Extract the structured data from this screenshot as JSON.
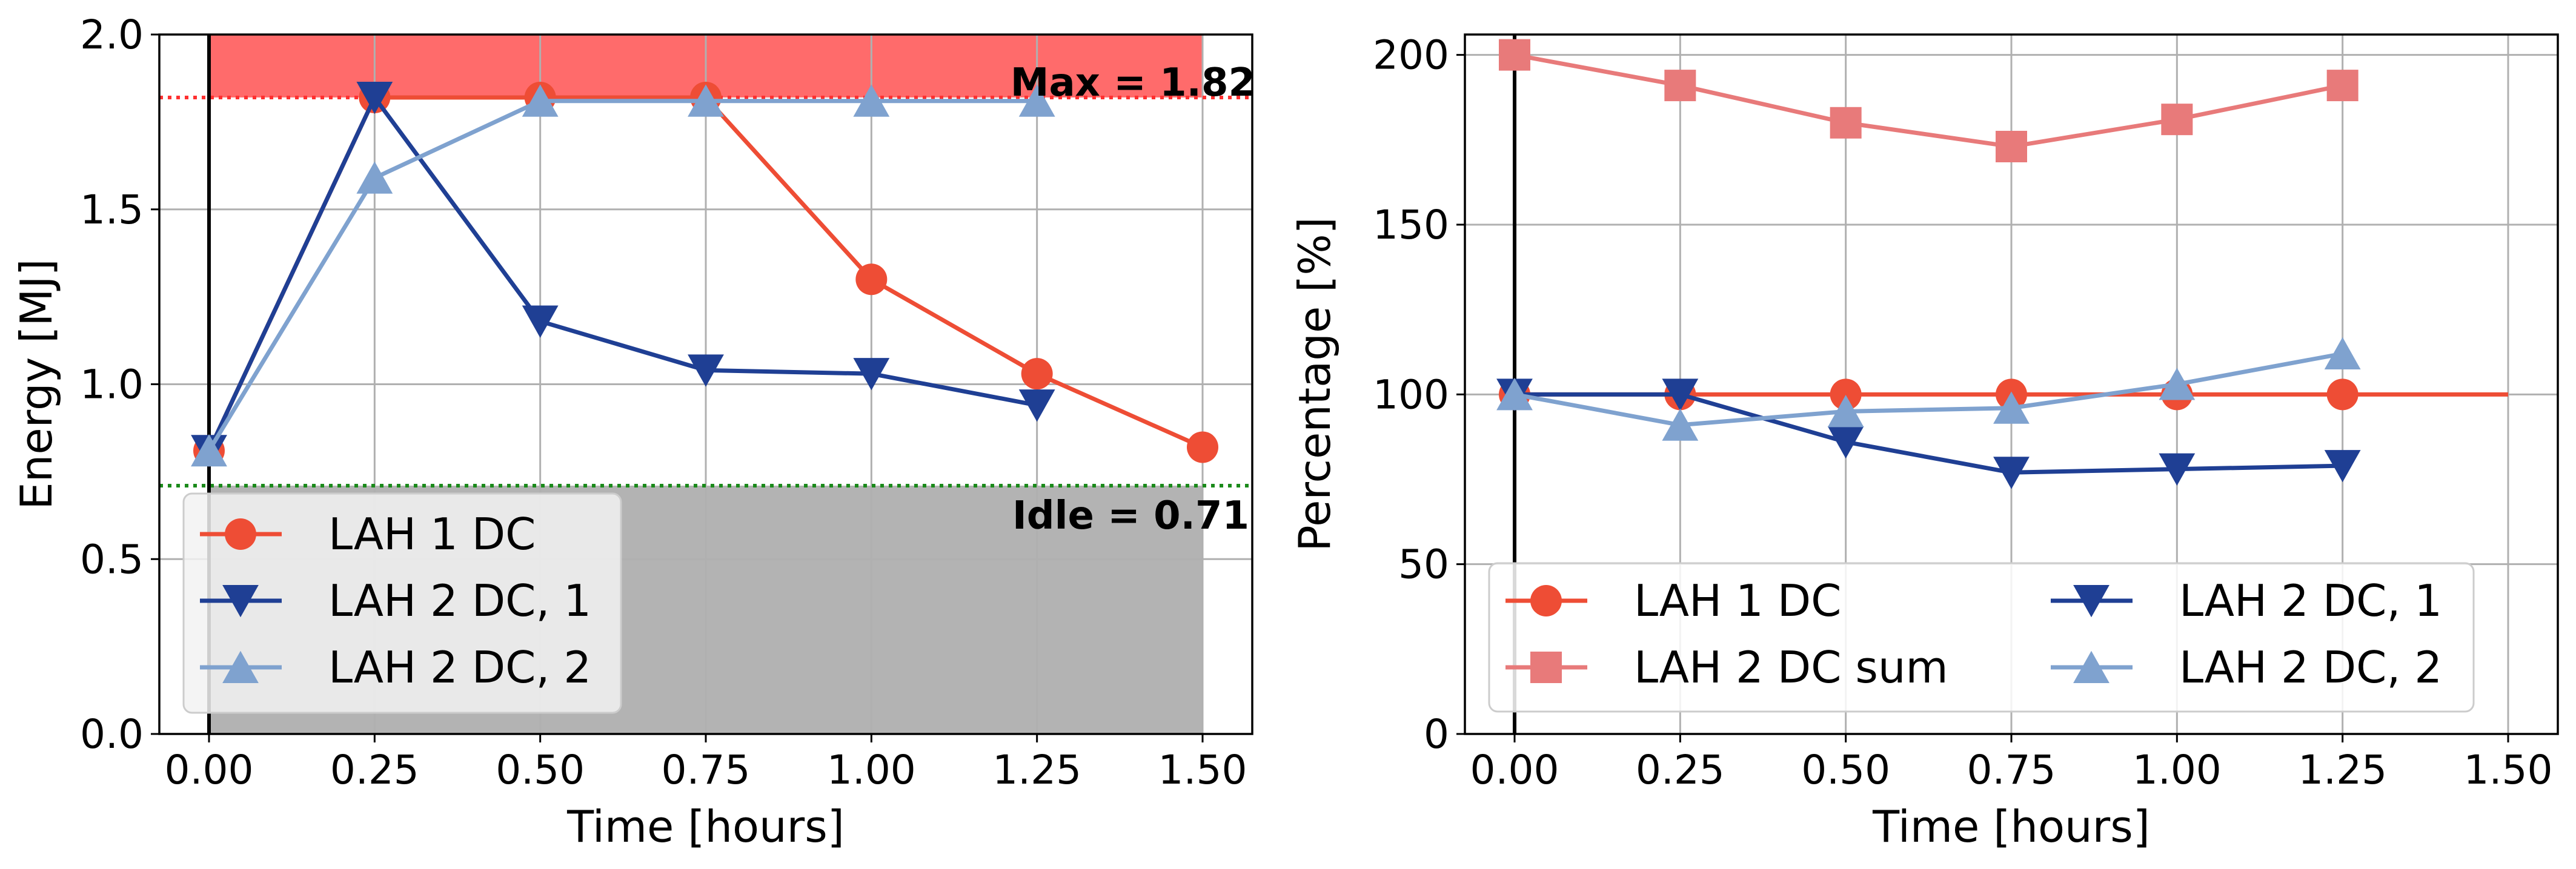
{
  "chart_data": [
    {
      "type": "line",
      "xlabel": "Time [hours]",
      "ylabel": "Energy [MJ]",
      "xlim": [
        -0.075,
        1.575
      ],
      "ylim": [
        0.0,
        2.0
      ],
      "xticks": [
        "0.00",
        "0.25",
        "0.50",
        "0.75",
        "1.00",
        "1.25",
        "1.50"
      ],
      "yticks": [
        "0.0",
        "0.5",
        "1.0",
        "1.5",
        "2.0"
      ],
      "grid": true,
      "legend_position": "lower-left",
      "bands": {
        "max_value": 1.82,
        "idle_value": 0.71,
        "x_start": 0.0,
        "x_end": 1.5,
        "max_band_color": "#ff6b6b",
        "idle_band_color": "#b3b3b3",
        "max_line_color": "#ff3030",
        "idle_line_color": "#1a8a1a"
      },
      "annotations": [
        {
          "text": "Max = 1.82",
          "x": 1.5,
          "y": 1.82
        },
        {
          "text": "Idle = 0.71",
          "x": 1.5,
          "y": 0.71
        }
      ],
      "series": [
        {
          "name": "LAH 1 DC",
          "color": "#ee4d35",
          "marker": "circle",
          "x": [
            0.0,
            0.25,
            0.5,
            0.75,
            1.0,
            1.25,
            1.5
          ],
          "y": [
            0.81,
            1.82,
            1.82,
            1.82,
            1.3,
            1.03,
            0.82
          ]
        },
        {
          "name": "LAH 2 DC, 1",
          "color": "#1f3f94",
          "marker": "triangle-down",
          "x": [
            0.0,
            0.25,
            0.5,
            0.75,
            1.0,
            1.25
          ],
          "y": [
            0.81,
            1.82,
            1.18,
            1.04,
            1.03,
            0.94
          ]
        },
        {
          "name": "LAH 2 DC, 2",
          "color": "#7fa2cf",
          "marker": "triangle-up",
          "x": [
            0.0,
            0.25,
            0.5,
            0.75,
            1.0,
            1.25
          ],
          "y": [
            0.81,
            1.59,
            1.81,
            1.81,
            1.81,
            1.81
          ]
        }
      ]
    },
    {
      "type": "line",
      "xlabel": "Time [hours]",
      "ylabel": "Percentage [%]",
      "xlim": [
        -0.075,
        1.575
      ],
      "ylim": [
        0,
        206
      ],
      "xticks": [
        "0.00",
        "0.25",
        "0.50",
        "0.75",
        "1.00",
        "1.25",
        "1.50"
      ],
      "yticks": [
        "0",
        "50",
        "100",
        "150",
        "200"
      ],
      "grid": true,
      "legend_position": "lower-center",
      "series": [
        {
          "name": "LAH 1 DC",
          "color": "#ee4d35",
          "marker": "circle",
          "x": [
            0.0,
            0.25,
            0.5,
            0.75,
            1.0,
            1.25,
            1.5
          ],
          "y": [
            100,
            100,
            100,
            100,
            100,
            100,
            100
          ]
        },
        {
          "name": "LAH 2 DC sum",
          "color": "#e87a7a",
          "marker": "square",
          "x": [
            0.0,
            0.25,
            0.5,
            0.75,
            1.0,
            1.25
          ],
          "y": [
            200,
            191,
            180,
            173,
            181,
            191
          ]
        },
        {
          "name": "LAH 2 DC, 1",
          "color": "#1f3f94",
          "marker": "triangle-down",
          "x": [
            0.0,
            0.25,
            0.5,
            0.75,
            1.0,
            1.25
          ],
          "y": [
            100,
            100,
            86,
            77,
            78,
            79
          ]
        },
        {
          "name": "LAH 2 DC, 2",
          "color": "#7fa2cf",
          "marker": "triangle-up",
          "x": [
            0.0,
            0.25,
            0.5,
            0.75,
            1.0,
            1.25
          ],
          "y": [
            100,
            91,
            95,
            96,
            103,
            112
          ]
        }
      ]
    }
  ]
}
